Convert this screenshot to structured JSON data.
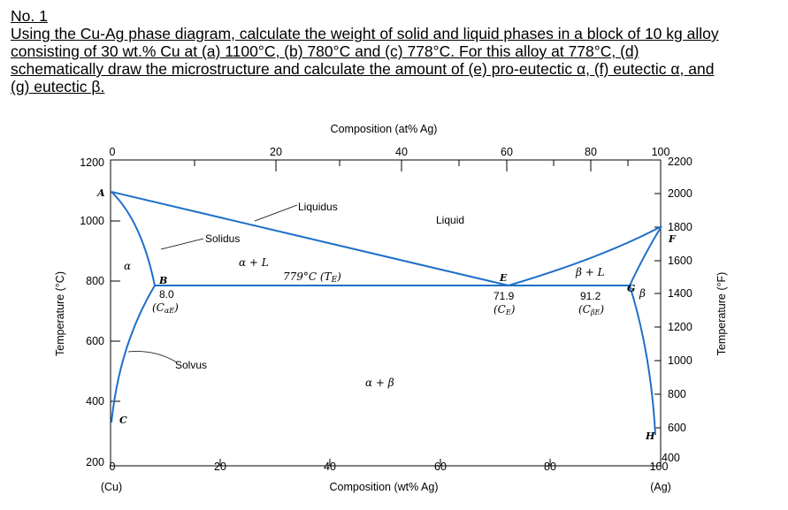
{
  "problem": {
    "number": "No. 1",
    "lines": [
      "Using the Cu-Ag phase diagram, calculate the weight of solid and liquid phases in a block of 10 kg alloy",
      "consisting of 30 wt.% Cu at (a) 1100°C, (b) 780°C and (c) 778°C. For this alloy at 778°C, (d)",
      "schematically draw the microstructure and calculate the amount of (e) pro-eutectic α, (f) eutectic α, and",
      "(g) eutectic β."
    ]
  },
  "diagram": {
    "top_axis_title": "Composition (at% Ag)",
    "bottom_axis_title": "Composition (wt% Ag)",
    "left_axis_title": "Temperature (°C)",
    "right_axis_title": "Temperature (°F)",
    "bottom_end_left": "(Cu)",
    "bottom_end_right": "(Ag)",
    "bottom_ticks": [
      "0",
      "20",
      "40",
      "60",
      "80",
      "100"
    ],
    "top_ticks": [
      "0",
      "20",
      "40",
      "60",
      "80",
      "100"
    ],
    "left_ticks": [
      "1200",
      "1000",
      "800",
      "600",
      "400",
      "200"
    ],
    "right_ticks": [
      "2200",
      "2000",
      "1800",
      "1600",
      "1400",
      "1200",
      "1000",
      "800",
      "600",
      "400"
    ],
    "regions": {
      "liquid": "Liquid",
      "alpha": "α",
      "alpha_plus_l": "α + L",
      "beta_plus_l": "β + L",
      "beta": "β",
      "alpha_plus_beta": "α + β"
    },
    "curve_labels": {
      "liquidus": "Liquidus",
      "solidus": "Solidus",
      "solvus": "Solvus",
      "eutectic_temp": "779°C (T",
      "eutectic_temp_sub": "E",
      "eutectic_temp_close": ")"
    },
    "points": {
      "A": "A",
      "B": "B",
      "C": "C",
      "E": "E",
      "F": "F",
      "G": "G",
      "H": "H"
    },
    "compositions": {
      "alpha_e_value": "8.0",
      "alpha_e_label": "(C",
      "alpha_e_sub": "αE",
      "alpha_e_close": ")",
      "eutectic_value": "71.9",
      "eutectic_label": "(C",
      "eutectic_sub": "E",
      "eutectic_close": ")",
      "beta_e_value": "91.2",
      "beta_e_label": "(C",
      "beta_e_sub": "βE",
      "beta_e_close": ")"
    },
    "line_color": "#1f6fc7"
  }
}
